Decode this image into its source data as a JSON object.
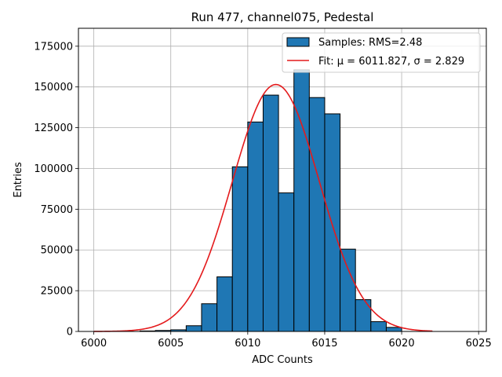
{
  "chart_data": {
    "type": "bar",
    "title": "Run 477, channel075, Pedestal",
    "xlabel": "ADC Counts",
    "ylabel": "Entries",
    "xlim": [
      5999,
      6025.5
    ],
    "ylim": [
      0,
      186000
    ],
    "xticks": [
      6000,
      6005,
      6010,
      6015,
      6020,
      6025
    ],
    "yticks": [
      0,
      25000,
      50000,
      75000,
      100000,
      125000,
      150000,
      175000
    ],
    "grid": true,
    "legend_position": "top-right",
    "bar_color": "#1f77b4",
    "fit_color": "#e41a1c",
    "histogram": {
      "name": "Samples: RMS=2.48",
      "bin_width": 1,
      "bin_left_edges": [
        6003,
        6004,
        6005,
        6006,
        6007,
        6008,
        6009,
        6010,
        6011,
        6012,
        6013,
        6014,
        6015,
        6016,
        6017,
        6018,
        6019
      ],
      "values": [
        300,
        600,
        1000,
        3500,
        17000,
        33500,
        101000,
        128500,
        145000,
        85000,
        160500,
        143500,
        133500,
        50500,
        19500,
        6000,
        2500
      ]
    },
    "fit": {
      "name_prefix": "Fit: ",
      "mu_text": "μ = 6011.827",
      "sigma_text": "σ = 2.829",
      "mu": 6011.827,
      "sigma": 2.829,
      "amplitude": 151500,
      "x_range": [
        6000,
        6022
      ]
    }
  }
}
